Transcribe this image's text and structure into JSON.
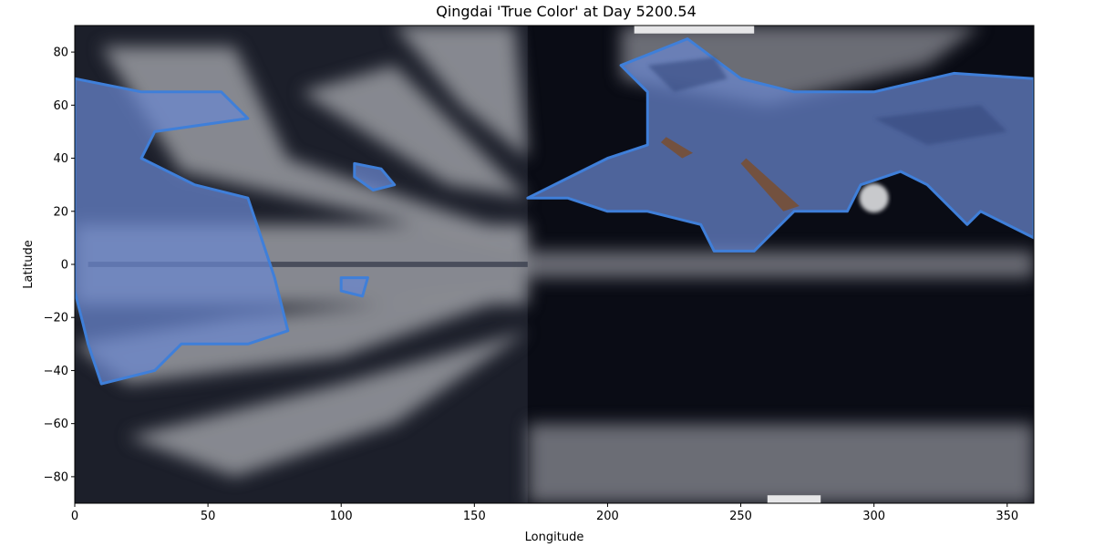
{
  "chart_data": {
    "type": "heatmap",
    "title": "Qingdai 'True Color' at Day 5200.54",
    "xlabel": "Longitude",
    "ylabel": "Latitude",
    "xlim": [
      0,
      360
    ],
    "ylim": [
      -90,
      90
    ],
    "xticks": [
      0,
      50,
      100,
      150,
      200,
      250,
      300,
      350
    ],
    "yticks": [
      -80,
      -60,
      -40,
      -20,
      0,
      20,
      40,
      60,
      80
    ],
    "grid": false,
    "legend": "none",
    "colors": {
      "night": "#0a0c15",
      "dark_cloud": "#1c1f2a",
      "bright_cloud": "#8c8e96",
      "ice": "#e6e6e8",
      "land": "#6a87d0",
      "land_dark": "#34497e",
      "coast": "#3f7fd9",
      "brown": "#7a4f30"
    },
    "regions": {
      "night_side": [
        [
          170,
          90
        ],
        [
          360,
          90
        ],
        [
          360,
          -90
        ],
        [
          170,
          -90
        ]
      ],
      "bright_bands": [
        [
          [
            0,
            15
          ],
          [
            170,
            15
          ],
          [
            170,
            -15
          ],
          [
            0,
            -15
          ]
        ],
        [
          [
            10,
            82
          ],
          [
            60,
            82
          ],
          [
            80,
            40
          ],
          [
            170,
            10
          ],
          [
            170,
            5
          ],
          [
            40,
            35
          ]
        ],
        [
          [
            120,
            90
          ],
          [
            165,
            90
          ],
          [
            170,
            40
          ],
          [
            145,
            60
          ]
        ],
        [
          [
            85,
            65
          ],
          [
            120,
            75
          ],
          [
            170,
            25
          ],
          [
            140,
            30
          ]
        ],
        [
          [
            0,
            -30
          ],
          [
            60,
            -20
          ],
          [
            170,
            -10
          ],
          [
            100,
            -35
          ],
          [
            20,
            -45
          ]
        ],
        [
          [
            20,
            -65
          ],
          [
            100,
            -45
          ],
          [
            170,
            -25
          ],
          [
            120,
            -60
          ],
          [
            60,
            -80
          ]
        ],
        [
          [
            170,
            -60
          ],
          [
            360,
            -60
          ],
          [
            360,
            -90
          ],
          [
            170,
            -90
          ]
        ],
        [
          [
            170,
            5
          ],
          [
            360,
            5
          ],
          [
            360,
            -5
          ],
          [
            170,
            -5
          ]
        ],
        [
          [
            205,
            90
          ],
          [
            340,
            90
          ],
          [
            320,
            75
          ],
          [
            260,
            60
          ],
          [
            205,
            70
          ]
        ]
      ],
      "land_masses": [
        [
          [
            0,
            70
          ],
          [
            25,
            65
          ],
          [
            55,
            65
          ],
          [
            65,
            55
          ],
          [
            30,
            50
          ],
          [
            25,
            40
          ],
          [
            45,
            30
          ],
          [
            65,
            25
          ],
          [
            70,
            10
          ],
          [
            75,
            -5
          ],
          [
            80,
            -25
          ],
          [
            65,
            -30
          ],
          [
            40,
            -30
          ],
          [
            30,
            -40
          ],
          [
            10,
            -45
          ],
          [
            5,
            -30
          ],
          [
            0,
            -10
          ]
        ],
        [
          [
            170,
            25
          ],
          [
            190,
            35
          ],
          [
            200,
            40
          ],
          [
            215,
            45
          ],
          [
            215,
            65
          ],
          [
            205,
            75
          ],
          [
            230,
            85
          ],
          [
            250,
            70
          ],
          [
            270,
            65
          ],
          [
            300,
            65
          ],
          [
            330,
            72
          ],
          [
            360,
            70
          ],
          [
            360,
            10
          ],
          [
            340,
            20
          ],
          [
            335,
            15
          ],
          [
            320,
            30
          ],
          [
            310,
            35
          ],
          [
            295,
            30
          ],
          [
            290,
            20
          ],
          [
            270,
            20
          ],
          [
            255,
            5
          ],
          [
            240,
            5
          ],
          [
            235,
            15
          ],
          [
            215,
            20
          ],
          [
            200,
            20
          ],
          [
            185,
            25
          ]
        ],
        [
          [
            105,
            38
          ],
          [
            115,
            36
          ],
          [
            120,
            30
          ],
          [
            112,
            28
          ],
          [
            105,
            33
          ]
        ],
        [
          [
            100,
            -5
          ],
          [
            110,
            -5
          ],
          [
            108,
            -12
          ],
          [
            100,
            -10
          ]
        ]
      ],
      "dark_patches": [
        [
          [
            215,
            75
          ],
          [
            240,
            78
          ],
          [
            245,
            70
          ],
          [
            225,
            65
          ]
        ],
        [
          [
            300,
            55
          ],
          [
            340,
            60
          ],
          [
            350,
            50
          ],
          [
            320,
            45
          ]
        ]
      ],
      "brown_streaks": [
        [
          [
            222,
            48
          ],
          [
            232,
            42
          ],
          [
            228,
            40
          ],
          [
            220,
            46
          ]
        ],
        [
          [
            252,
            40
          ],
          [
            272,
            22
          ],
          [
            266,
            20
          ],
          [
            250,
            38
          ]
        ]
      ],
      "ice_caps": [
        [
          [
            210,
            90
          ],
          [
            255,
            90
          ],
          [
            255,
            87
          ],
          [
            210,
            87
          ]
        ],
        [
          [
            260,
            -87
          ],
          [
            280,
            -87
          ],
          [
            280,
            -90
          ],
          [
            260,
            -90
          ]
        ]
      ],
      "bright_spot": [
        300,
        25
      ]
    }
  }
}
